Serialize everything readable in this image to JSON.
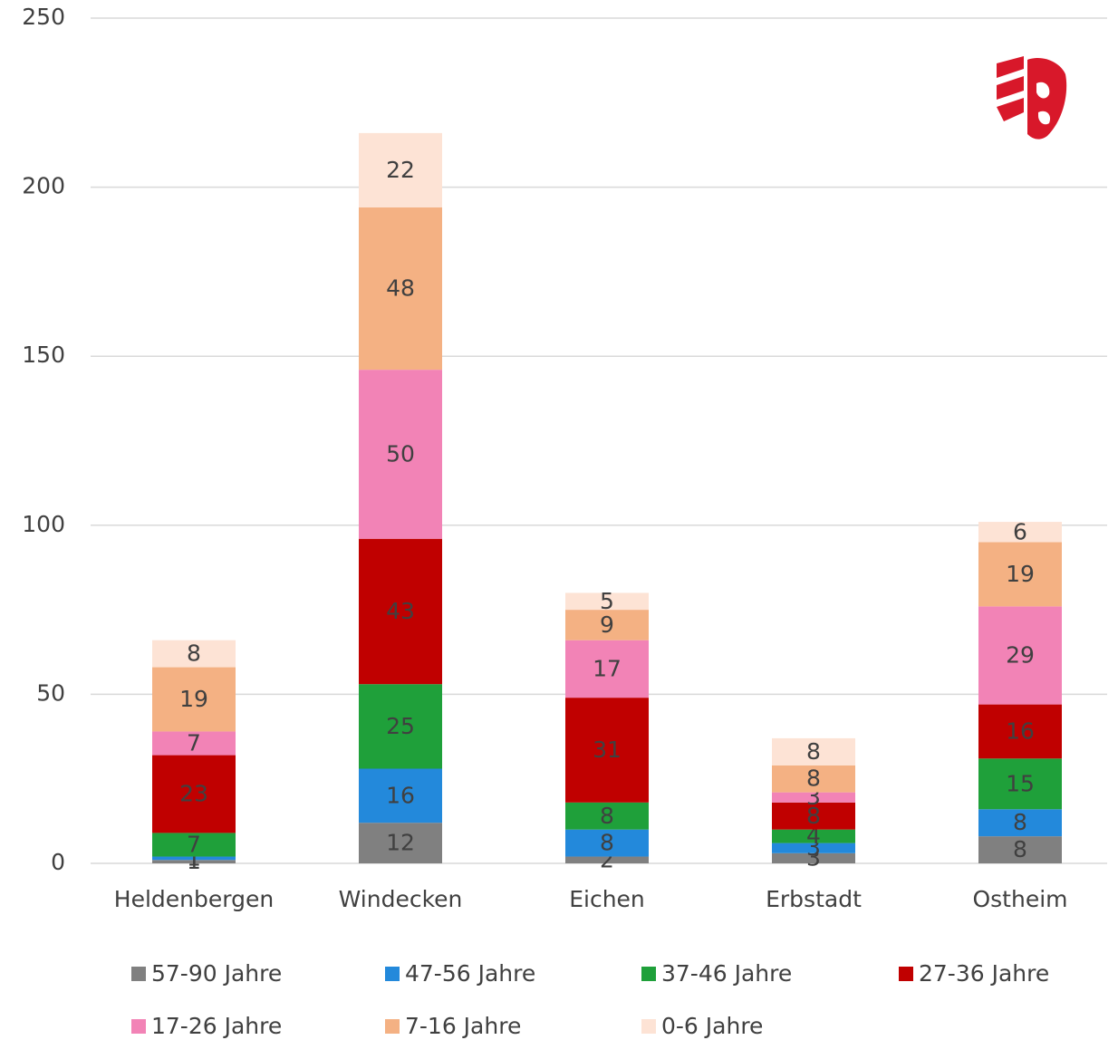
{
  "chart_data": {
    "type": "stacked_bar",
    "categories": [
      "Heldenbergen",
      "Windecken",
      "Eichen",
      "Erbstadt",
      "Ostheim"
    ],
    "series": [
      {
        "name": "57-90 Jahre",
        "color": "#808080",
        "values": [
          1,
          12,
          2,
          3,
          8
        ]
      },
      {
        "name": "47-56 Jahre",
        "color": "#2389db",
        "values": [
          1,
          16,
          8,
          3,
          8
        ]
      },
      {
        "name": "37-46 Jahre",
        "color": "#1fa03a",
        "values": [
          7,
          25,
          8,
          4,
          15
        ]
      },
      {
        "name": "27-36 Jahre",
        "color": "#c00000",
        "values": [
          23,
          43,
          31,
          8,
          16
        ]
      },
      {
        "name": "17-26 Jahre",
        "color": "#f283b6",
        "values": [
          7,
          50,
          17,
          3,
          29
        ]
      },
      {
        "name": "7-16 Jahre",
        "color": "#f4b183",
        "values": [
          19,
          48,
          9,
          8,
          19
        ]
      },
      {
        "name": "0-6 Jahre",
        "color": "#fde3d5",
        "values": [
          8,
          22,
          5,
          8,
          6
        ]
      }
    ],
    "ylim": [
      0,
      250
    ],
    "yticks": [
      0,
      50,
      100,
      150,
      200,
      250
    ],
    "grid": true
  }
}
